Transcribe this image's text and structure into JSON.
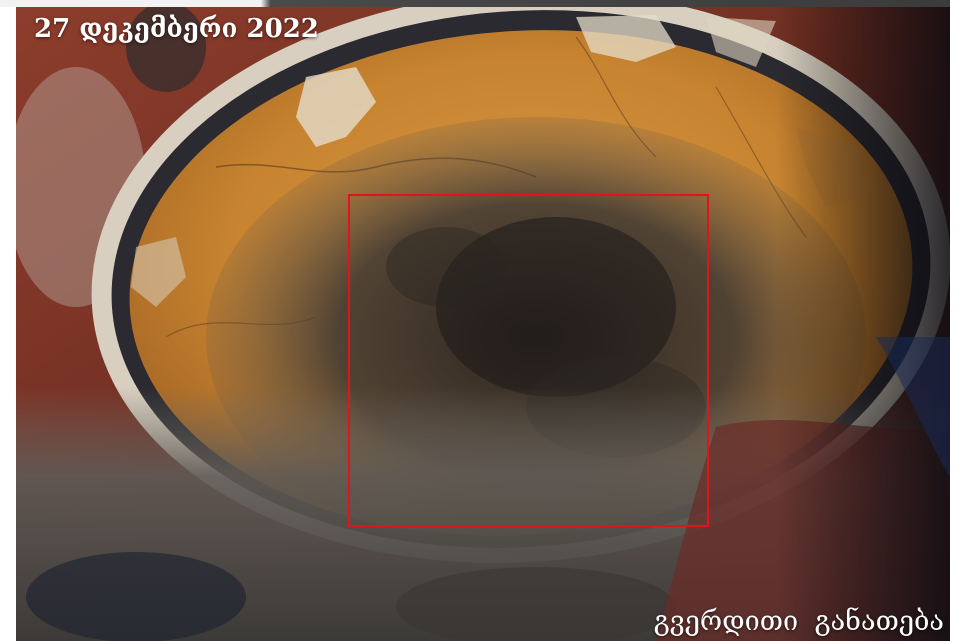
{
  "image": {
    "date_label": "27 დეკემბერი 2022",
    "caption": "გვერდითი განათება",
    "highlight_color": "#e0141b",
    "palette": {
      "ochre": "#c8822e",
      "red_plaster": "#7e3526",
      "dark_band": "#2a2a30",
      "white_band": "#d8cfc0",
      "soot": "#2e2a28",
      "grey_plaster": "#8a8680"
    }
  }
}
